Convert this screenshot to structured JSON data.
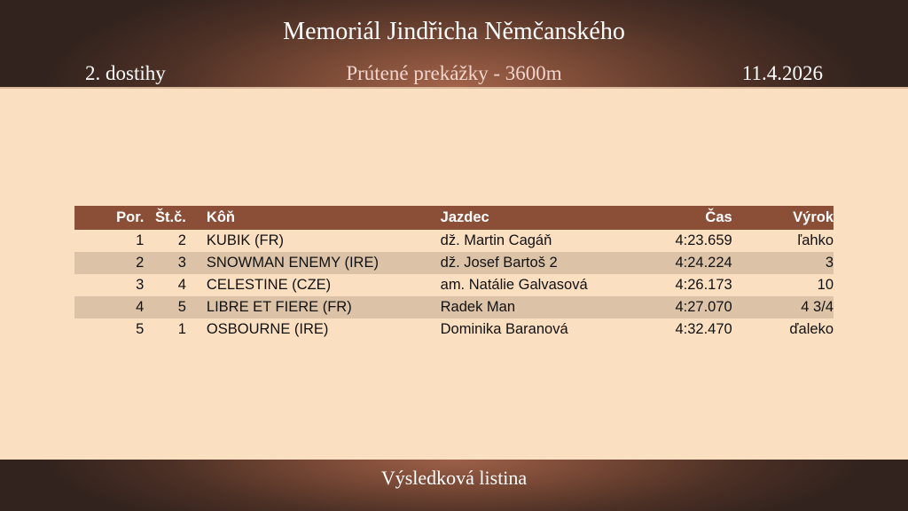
{
  "header": {
    "title": "Memoriál Jindřicha Němčanského",
    "race_number": "2. dostihy",
    "race_name": "Prútené prekážky - 3600m",
    "date": "11.4.2026"
  },
  "table": {
    "columns": [
      "Por.",
      "Št.č.",
      "Kôň",
      "Jazdec",
      "Čas",
      "Výrok"
    ],
    "rows": [
      [
        "1",
        "2",
        "KUBIK (FR)",
        "dž. Martin Cagáň",
        "4:23.659",
        "ľahko"
      ],
      [
        "2",
        "3",
        "SNOWMAN ENEMY (IRE)",
        "dž. Josef Bartoš 2",
        "4:24.224",
        "3"
      ],
      [
        "3",
        "4",
        "CELESTINE (CZE)",
        "am. Natálie Galvasová",
        "4:26.173",
        "10"
      ],
      [
        "4",
        "5",
        "LIBRE ET FIERE (FR)",
        "Radek Man",
        "4:27.070",
        "4 3/4"
      ],
      [
        "5",
        "1",
        "OSBOURNE (IRE)",
        "Dominika Baranová",
        "4:32.470",
        "ďaleko"
      ]
    ]
  },
  "footer": {
    "label": "Výsledková listina"
  },
  "colors": {
    "header_row": "#8b4f38",
    "alt_row": "#dcc3a8",
    "background": "#fbdfc1"
  }
}
